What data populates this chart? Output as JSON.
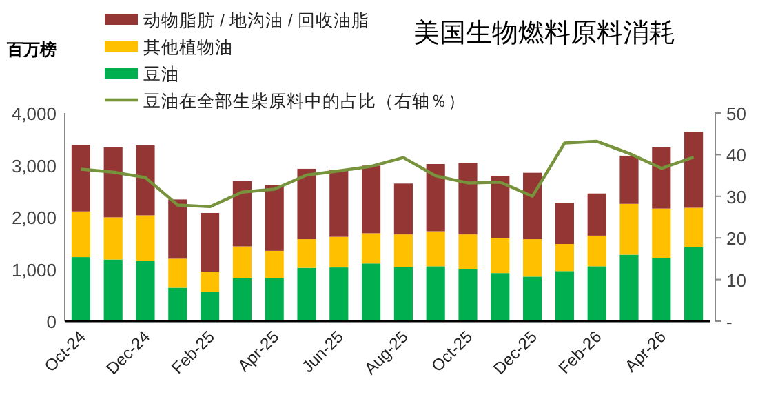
{
  "chart_data": {
    "type": "bar",
    "title": "美国生物燃料原料消耗",
    "ylabel": "百万榜",
    "stacked": true,
    "legend": "top left",
    "categories": [
      "Oct-24",
      null,
      "Dec-24",
      null,
      "Feb-25",
      null,
      "Apr-25",
      null,
      "Jun-25",
      null,
      "Aug-25",
      null,
      "Oct-25",
      null,
      "Dec-25",
      null,
      "Feb-26",
      null,
      "Apr-26",
      null
    ],
    "series": [
      {
        "name": "豆油",
        "color": "#00b050",
        "values": [
          1231,
          1185,
          1162,
          642,
          558,
          826,
          826,
          1024,
          1032,
          1109,
          1040,
          1055,
          994,
          925,
          856,
          963,
          1055,
          1277,
          1216,
          1422
        ]
      },
      {
        "name": "其他植物油",
        "color": "#ffc000",
        "values": [
          879,
          810,
          872,
          558,
          390,
          611,
          527,
          551,
          589,
          581,
          627,
          673,
          673,
          665,
          719,
          520,
          589,
          978,
          948,
          757
        ]
      },
      {
        "name": "动物脂肪 / 地沟油 / 回收油脂",
        "color": "#943634",
        "values": [
          1277,
          1346,
          1345,
          1139,
          1132,
          1254,
          1269,
          1353,
          1292,
          1299,
          978,
          1292,
          1376,
          1201,
          1277,
          795,
          810,
          925,
          1177,
          1460
        ]
      },
      {
        "name": "豆油在全部生柴原料中的占比（右轴％）",
        "type": "line",
        "axis": "y2",
        "color": "#77933c",
        "values": [
          36.5,
          35.8,
          34.5,
          27.9,
          27.5,
          31.0,
          31.7,
          35.1,
          36.1,
          37.2,
          39.3,
          34.9,
          33.2,
          33.4,
          30.0,
          42.8,
          43.2,
          40.3,
          36.7,
          39.4
        ]
      }
    ],
    "ylim": [
      0,
      4000
    ],
    "yticks": [
      0,
      {
        "value": 1000,
        "label": "1,000"
      },
      {
        "value": 2000,
        "label": "2,000"
      },
      {
        "value": 3000,
        "label": "3,000"
      },
      {
        "value": 4000,
        "label": "4,000"
      }
    ],
    "y2lim": [
      0,
      50
    ],
    "y2ticks": [
      {
        "value": 0,
        "label": "-"
      },
      10,
      20,
      30,
      40,
      50
    ]
  }
}
